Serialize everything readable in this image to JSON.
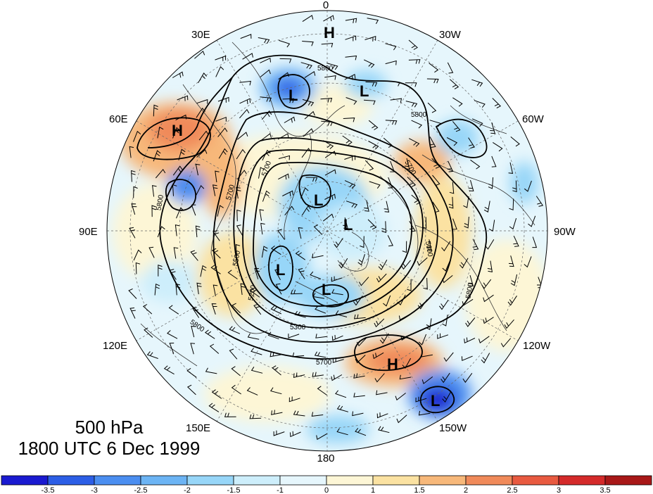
{
  "title": {
    "level": "500 hPa",
    "datetime": "1800 UTC 6 Dec 1999"
  },
  "longitude_labels": [
    "0",
    "30W",
    "60W",
    "90W",
    "120W",
    "150W",
    "180",
    "150E",
    "120E",
    "90E",
    "60E",
    "30E"
  ],
  "pressure_centers": [
    {
      "type": "H",
      "region": "north-atlantic / greenland"
    },
    {
      "type": "L",
      "region": "north-atlantic"
    },
    {
      "type": "L",
      "region": "scandinavia"
    },
    {
      "type": "H",
      "region": "central-asia"
    },
    {
      "type": "L",
      "region": "polar-east"
    },
    {
      "type": "L",
      "region": "canadian-archipelago"
    },
    {
      "type": "L",
      "region": "east-siberia"
    },
    {
      "type": "L",
      "region": "arctic-ocean"
    },
    {
      "type": "H",
      "region": "north-pacific"
    },
    {
      "type": "L",
      "region": "north-pacific"
    }
  ],
  "contour_labels": [
    "5800",
    "5800",
    "5800",
    "5700",
    "5700",
    "5800",
    "5500",
    "5200",
    "5300",
    "5700",
    "5800",
    "5600",
    "5700"
  ],
  "colorbar": {
    "tick_labels": [
      "-3.5",
      "-3",
      "-2.5",
      "-2",
      "-1.5",
      "-1",
      "0",
      "1",
      "1.5",
      "2",
      "2.5",
      "3",
      "3.5"
    ],
    "colors": [
      "#1a1ad0",
      "#2c5ee6",
      "#4b8ef0",
      "#6cb4f4",
      "#97d6f8",
      "#cdeefb",
      "#e6f6fc",
      "#fdf6d6",
      "#fbe2a2",
      "#f7b87a",
      "#f08a5a",
      "#e85a40",
      "#d42a2a",
      "#a81818"
    ]
  },
  "colors": {
    "contour": "#000000",
    "grid": "#555555",
    "coast": "#333333"
  }
}
